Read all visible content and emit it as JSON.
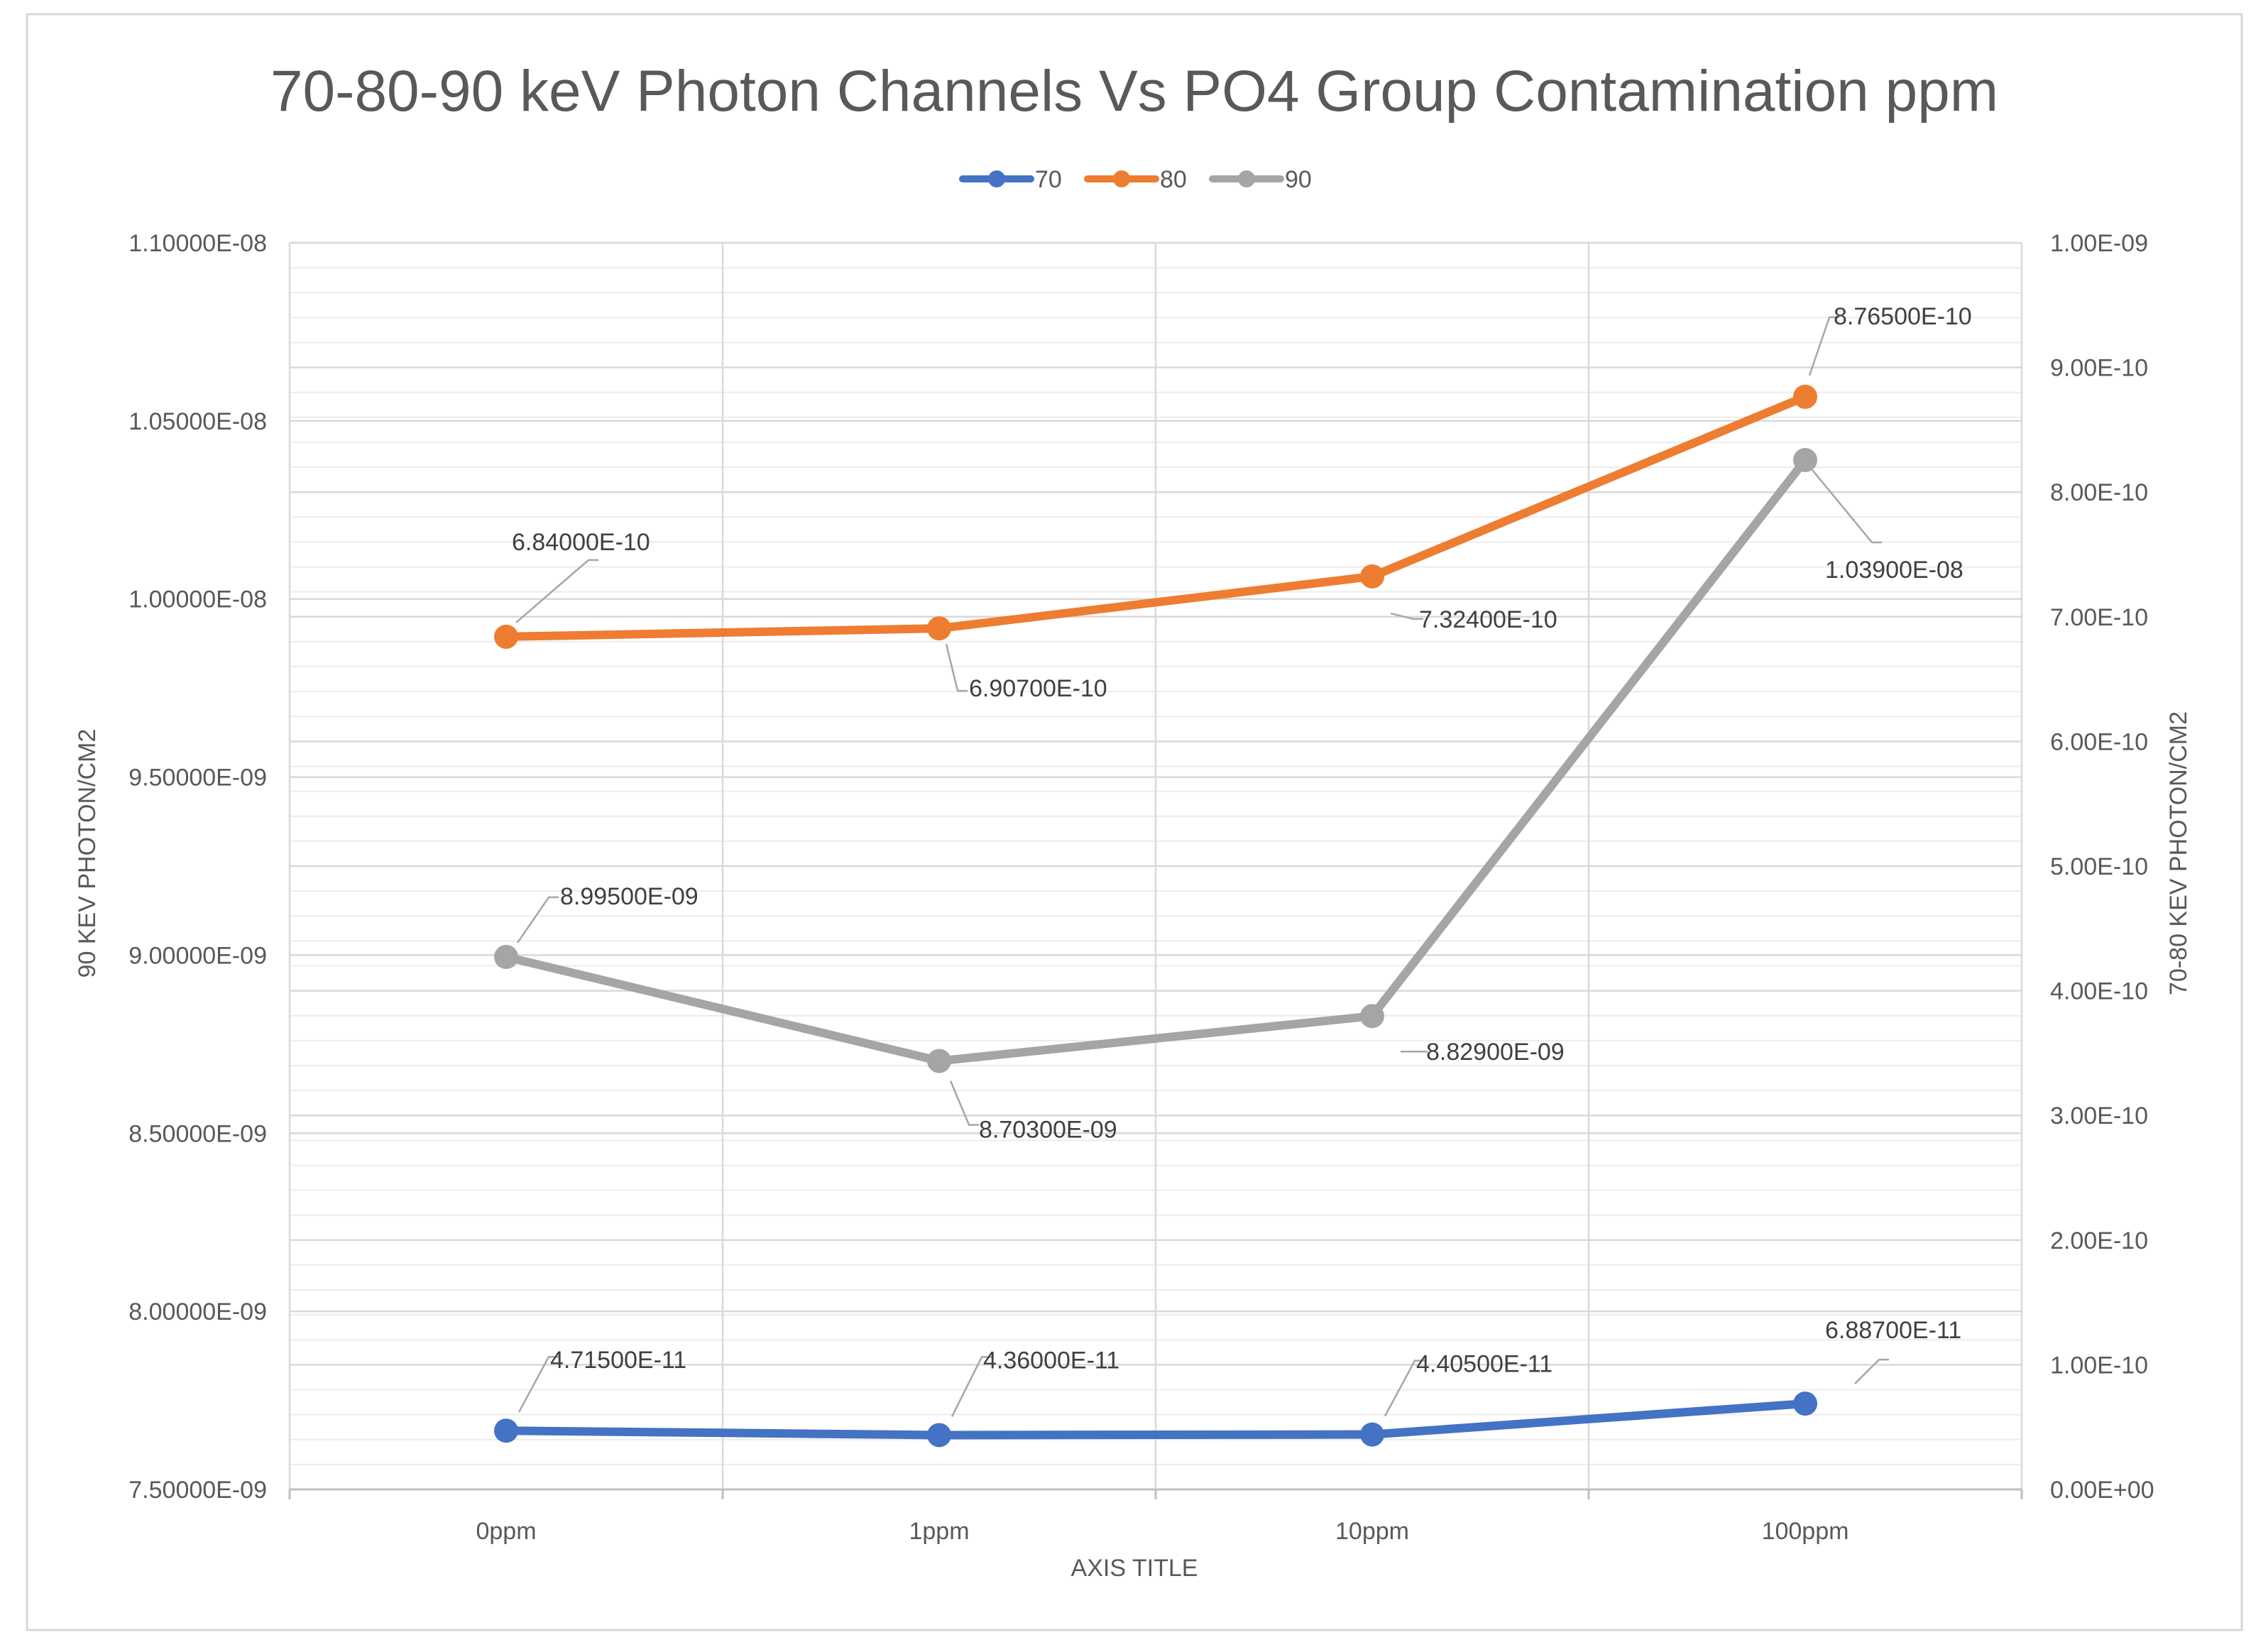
{
  "chart_data": {
    "type": "line",
    "title": "70-80-90 keV Photon Channels Vs PO4 Group Contamination ppm",
    "categories": [
      "0ppm",
      "1ppm",
      "10ppm",
      "100ppm"
    ],
    "xlabel": "AXIS TITLE",
    "ylabel_left": "90 KEV PHOTON/CM2",
    "ylabel_right": "70-80 KEV PHOTON/CM2",
    "y_left": {
      "min": 7.5e-09,
      "max": 1.1e-08,
      "step": 5e-10,
      "tick_labels": [
        "7.50000E-09",
        "8.00000E-09",
        "8.50000E-09",
        "9.00000E-09",
        "9.50000E-09",
        "1.00000E-08",
        "1.05000E-08",
        "1.10000E-08"
      ]
    },
    "y_right": {
      "min": 0,
      "max": 1e-09,
      "step": 1e-10,
      "tick_labels": [
        "0.00E+00",
        "1.00E-10",
        "2.00E-10",
        "3.00E-10",
        "4.00E-10",
        "5.00E-10",
        "6.00E-10",
        "7.00E-10",
        "8.00E-10",
        "9.00E-10",
        "1.00E-09"
      ]
    },
    "legend_position": "top-center",
    "series": [
      {
        "name": "70",
        "color": "#4472C4",
        "axis": "right",
        "values": [
          4.715e-11,
          4.36e-11,
          4.405e-11,
          6.887e-11
        ],
        "labels": [
          "4.71500E-11",
          "4.36000E-11",
          "4.40500E-11",
          "6.88700E-11"
        ]
      },
      {
        "name": "80",
        "color": "#ED7D31",
        "axis": "right",
        "values": [
          6.84e-10,
          6.907e-10,
          7.324e-10,
          8.765e-10
        ],
        "labels": [
          "6.84000E-10",
          "6.90700E-10",
          "7.32400E-10",
          "8.76500E-10"
        ]
      },
      {
        "name": "90",
        "color": "#A5A5A5",
        "axis": "left",
        "values": [
          8.995e-09,
          8.703e-09,
          8.829e-09,
          1.039e-08
        ],
        "labels": [
          "8.99500E-09",
          "8.70300E-09",
          "8.82900E-09",
          "1.03900E-08"
        ]
      }
    ]
  }
}
